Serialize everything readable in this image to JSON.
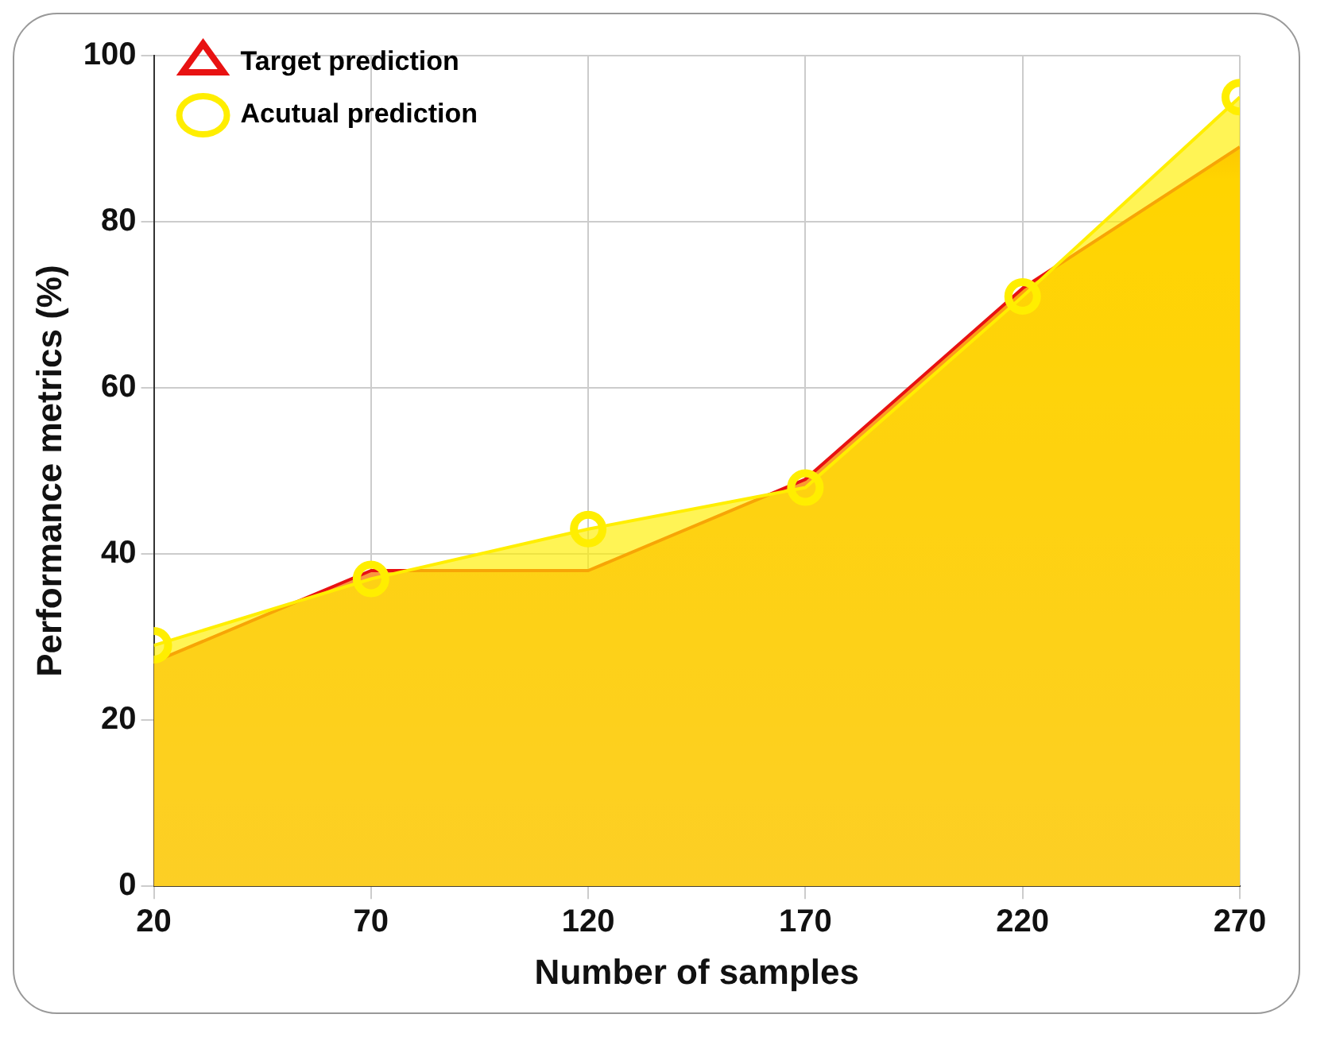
{
  "chart_data": {
    "type": "area",
    "xlabel": "Number of samples",
    "ylabel": "Performance metrics (%)",
    "x": [
      20,
      70,
      120,
      170,
      220,
      270
    ],
    "xlim": [
      20,
      270
    ],
    "xticks": [
      20,
      70,
      120,
      170,
      220,
      270
    ],
    "ylim": [
      0,
      100
    ],
    "yticks": [
      0,
      20,
      40,
      60,
      80,
      100
    ],
    "series": [
      {
        "name": "Target prediction",
        "color": "#e81212",
        "values": [
          27,
          38,
          38,
          49,
          72,
          89
        ]
      },
      {
        "name": "Acutual prediction",
        "color": "#ffee00",
        "marker": "circle",
        "values": [
          29,
          37,
          43,
          48,
          71,
          95
        ]
      }
    ],
    "grid": true,
    "legend": "top left"
  }
}
